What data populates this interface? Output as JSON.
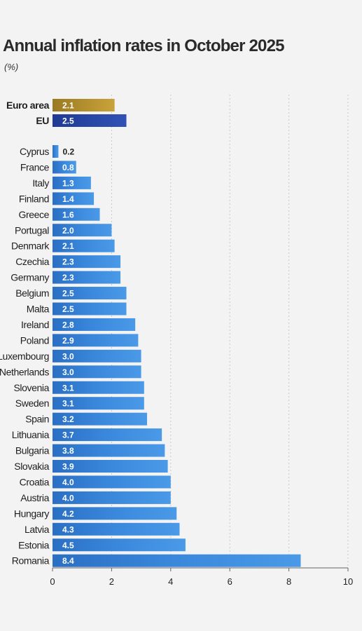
{
  "title": "Annual inflation rates in October 2025",
  "subtitle": "(%)",
  "chart_data": {
    "type": "bar",
    "orientation": "horizontal",
    "title": "Annual inflation rates in October 2025",
    "subtitle": "(%)",
    "xlim": [
      0,
      10
    ],
    "xticks": [
      0,
      2,
      4,
      6,
      8,
      10
    ],
    "grid": "vertical dashed",
    "highlight": [
      {
        "name": "Euro area",
        "value": 2.1,
        "label": "2.1",
        "color": "#b8912a"
      },
      {
        "name": "EU",
        "value": 2.5,
        "label": "2.5",
        "color": "#2c49a8"
      }
    ],
    "bar_color": "#3d8ee0",
    "categories": [
      "Cyprus",
      "France",
      "Italy",
      "Finland",
      "Greece",
      "Portugal",
      "Denmark",
      "Czechia",
      "Germany",
      "Belgium",
      "Malta",
      "Ireland",
      "Poland",
      "Luxembourg",
      "Netherlands",
      "Slovenia",
      "Sweden",
      "Spain",
      "Lithuania",
      "Bulgaria",
      "Slovakia",
      "Croatia",
      "Austria",
      "Hungary",
      "Latvia",
      "Estonia",
      "Romania"
    ],
    "values": [
      0.2,
      0.8,
      1.3,
      1.4,
      1.6,
      2.0,
      2.1,
      2.3,
      2.3,
      2.5,
      2.5,
      2.8,
      2.9,
      3.0,
      3.0,
      3.1,
      3.1,
      3.2,
      3.7,
      3.8,
      3.9,
      4.0,
      4.0,
      4.2,
      4.3,
      4.5,
      8.4
    ],
    "labels": [
      "0.2",
      "0.8",
      "1.3",
      "1.4",
      "1.6",
      "2.0",
      "2.1",
      "2.3",
      "2.3",
      "2.5",
      "2.5",
      "2.8",
      "2.9",
      "3.0",
      "3.0",
      "3.1",
      "3.1",
      "3.2",
      "3.7",
      "3.8",
      "3.9",
      "4.0",
      "4.0",
      "4.2",
      "4.3",
      "4.5",
      "8.4"
    ]
  }
}
